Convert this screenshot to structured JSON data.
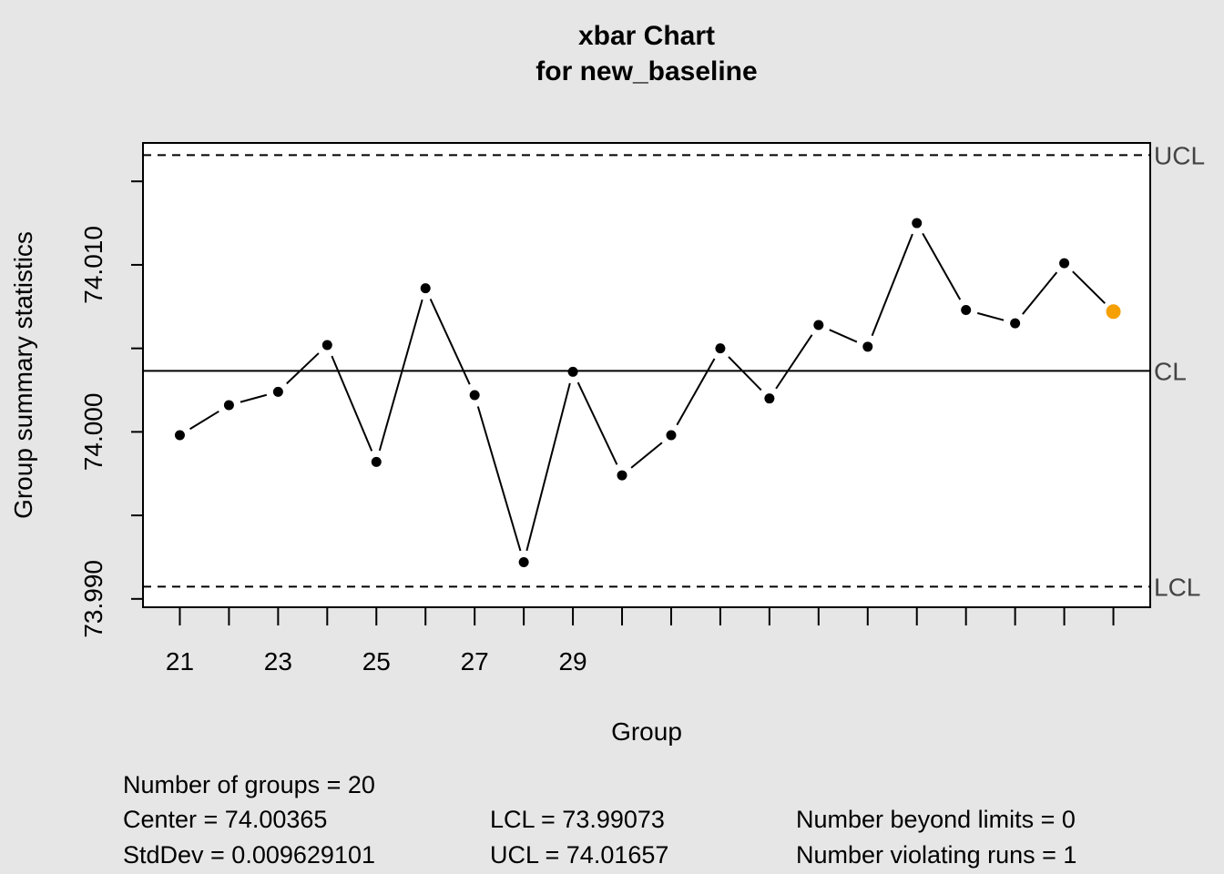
{
  "chart_data": {
    "type": "line",
    "title": "xbar Chart",
    "subtitle": "for new_baseline",
    "xlabel": "Group",
    "ylabel": "Group summary statistics",
    "x": [
      21,
      22,
      23,
      24,
      25,
      26,
      27,
      28,
      29,
      30,
      31,
      32,
      33,
      34,
      35,
      36,
      37,
      38,
      39,
      40
    ],
    "values": [
      73.9998,
      74.0016,
      74.0024,
      74.0052,
      73.9982,
      74.0086,
      74.0022,
      73.9922,
      74.0036,
      73.9974,
      73.9998,
      74.005,
      74.002,
      74.0064,
      74.0051,
      74.0125,
      74.0073,
      74.0065,
      74.0101,
      74.0072
    ],
    "highlight_index": 19,
    "highlight_color": "#f5a000",
    "ylim": [
      73.9895,
      74.0173
    ],
    "xlim": [
      20.25,
      40.75
    ],
    "y_ticks": [
      73.99,
      73.995,
      74.0,
      74.005,
      74.01,
      74.015
    ],
    "y_tick_labels": [
      "73.990",
      "",
      "74.000",
      "",
      "74.010",
      ""
    ],
    "x_ticks": [
      21,
      22,
      23,
      24,
      25,
      26,
      27,
      28,
      29,
      30,
      31,
      32,
      33,
      34,
      35,
      36,
      37,
      38,
      39,
      40
    ],
    "x_tick_labels": [
      "21",
      "",
      "23",
      "",
      "25",
      "",
      "27",
      "",
      "29",
      "",
      "",
      "",
      "",
      "",
      "",
      "",
      "",
      "",
      "",
      ""
    ],
    "center_line": 74.00365,
    "lcl": 73.99073,
    "ucl": 74.01657,
    "limit_labels": {
      "ucl": "UCL",
      "cl": "CL",
      "lcl": "LCL"
    }
  },
  "stats": {
    "groups": "Number of groups = 20",
    "center": "Center = 74.00365",
    "stddev": "StdDev = 0.009629101",
    "lcl": "LCL = 73.99073",
    "ucl": "UCL = 74.01657",
    "beyond": "Number beyond limits = 0",
    "violating": "Number violating runs = 1"
  }
}
